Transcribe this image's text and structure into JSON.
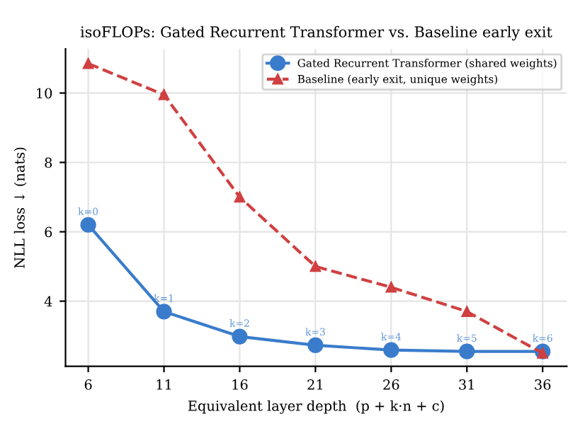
{
  "chart_data": {
    "type": "line",
    "title": "isoFLOPs: Gated Recurrent Transformer vs. Baseline early exit",
    "xlabel": "Equivalent layer depth  (p + k·n + c)",
    "ylabel": "NLL loss ↓ (nats)",
    "x": [
      6,
      11,
      16,
      21,
      26,
      31,
      36
    ],
    "series": [
      {
        "name": "Gated Recurrent Transformer (shared weights)",
        "color": "#3a7ccc",
        "values": [
          6.2,
          3.7,
          2.98,
          2.73,
          2.59,
          2.55,
          2.55
        ],
        "marker": "circle",
        "line_style": "solid"
      },
      {
        "name": "Baseline (early exit, unique weights)",
        "color": "#d04040",
        "values": [
          10.85,
          9.95,
          7.0,
          5.0,
          4.4,
          3.7,
          2.5
        ],
        "marker": "triangle",
        "line_style": "dashed"
      }
    ],
    "annotations": [
      {
        "text": "k=0",
        "x": 6,
        "y": 6.2
      },
      {
        "text": "k=1",
        "x": 11,
        "y": 3.7
      },
      {
        "text": "k=2",
        "x": 16,
        "y": 2.98
      },
      {
        "text": "k=3",
        "x": 21,
        "y": 2.73
      },
      {
        "text": "k=4",
        "x": 26,
        "y": 2.59
      },
      {
        "text": "k=5",
        "x": 31,
        "y": 2.55
      },
      {
        "text": "k=6",
        "x": 36,
        "y": 2.55
      }
    ],
    "xlim": [
      4.5,
      37.6
    ],
    "ylim": [
      2.12,
      11.27
    ],
    "xticks": [
      6,
      11,
      16,
      21,
      26,
      31,
      36
    ],
    "yticks": [
      4,
      6,
      8,
      10
    ],
    "grid": true,
    "legend": "top right"
  }
}
